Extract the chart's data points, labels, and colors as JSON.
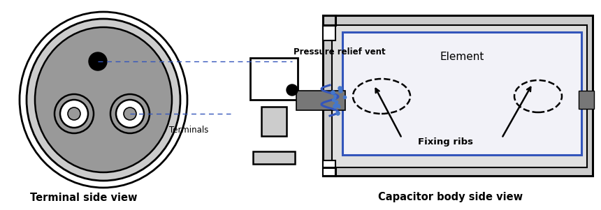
{
  "fig_width": 8.6,
  "fig_height": 3.01,
  "dpi": 100,
  "bg_color": "#ffffff",
  "gray_light": "#cccccc",
  "gray_mid": "#999999",
  "gray_dark": "#777777",
  "gray_inner": "#e0e0e0",
  "blue_line": "#3355bb",
  "blue_dot": "#4477cc",
  "title_left": "Terminal side view",
  "title_right": "Capacitor body side view",
  "label_vent": "Pressure relief vent",
  "label_terminals": "Terminals",
  "label_element": "Element",
  "label_fixing": "Fixing ribs"
}
